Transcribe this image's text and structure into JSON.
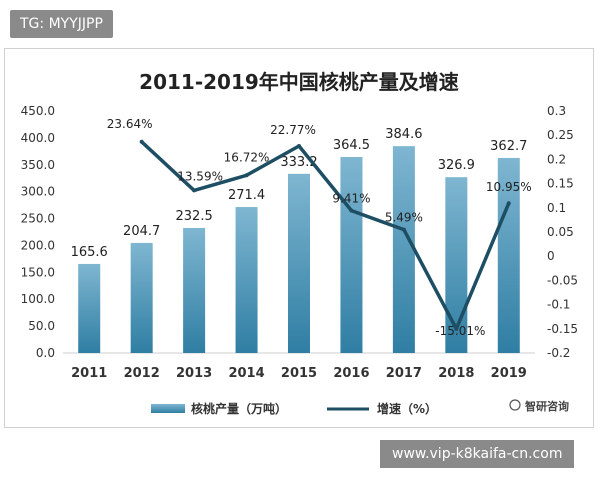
{
  "watermark_top": "TG: MYYJJPP",
  "watermark_bottom": "www.vip-k8kaifa-cn.com",
  "brand": "智研咨询",
  "colors": {
    "bar_top": "#7fb6d1",
    "bar_bottom": "#2f7ea3",
    "line": "#1e4e63",
    "axis_text": "#333333"
  },
  "chart_data": {
    "type": "bar",
    "title": "2011-2019年中国核桃产量及增速",
    "categories": [
      "2011",
      "2012",
      "2013",
      "2014",
      "2015",
      "2016",
      "2017",
      "2018",
      "2019"
    ],
    "series": [
      {
        "name": "核桃产量（万吨）",
        "type": "bar",
        "axis": "left",
        "values": [
          165.6,
          204.7,
          232.5,
          271.4,
          333.2,
          364.5,
          384.6,
          326.9,
          362.7
        ],
        "labels": [
          "165.6",
          "204.7",
          "232.5",
          "271.4",
          "333.2",
          "364.5",
          "384.6",
          "326.9",
          "362.7"
        ]
      },
      {
        "name": "增速（%）",
        "type": "line",
        "axis": "right",
        "values": [
          null,
          0.2364,
          0.1359,
          0.1672,
          0.2277,
          0.0941,
          0.0549,
          -0.1501,
          0.1095
        ],
        "labels": [
          "",
          "23.64%",
          "13.59%",
          "16.72%",
          "22.77%",
          "9.41%",
          "5.49%",
          "-15.01%",
          "10.95%"
        ]
      }
    ],
    "y_left": {
      "lim": [
        0,
        450
      ],
      "ticks": [
        "0.0",
        "50.0",
        "100.0",
        "150.0",
        "200.0",
        "250.0",
        "300.0",
        "350.0",
        "400.0",
        "450.0"
      ]
    },
    "y_right": {
      "lim": [
        -0.2,
        0.3
      ],
      "ticks": [
        "-0.2",
        "-0.15",
        "-0.1",
        "-0.05",
        "0",
        "0.05",
        "0.1",
        "0.15",
        "0.2",
        "0.25",
        "0.3"
      ]
    },
    "grid": false,
    "legend_position": "bottom"
  }
}
